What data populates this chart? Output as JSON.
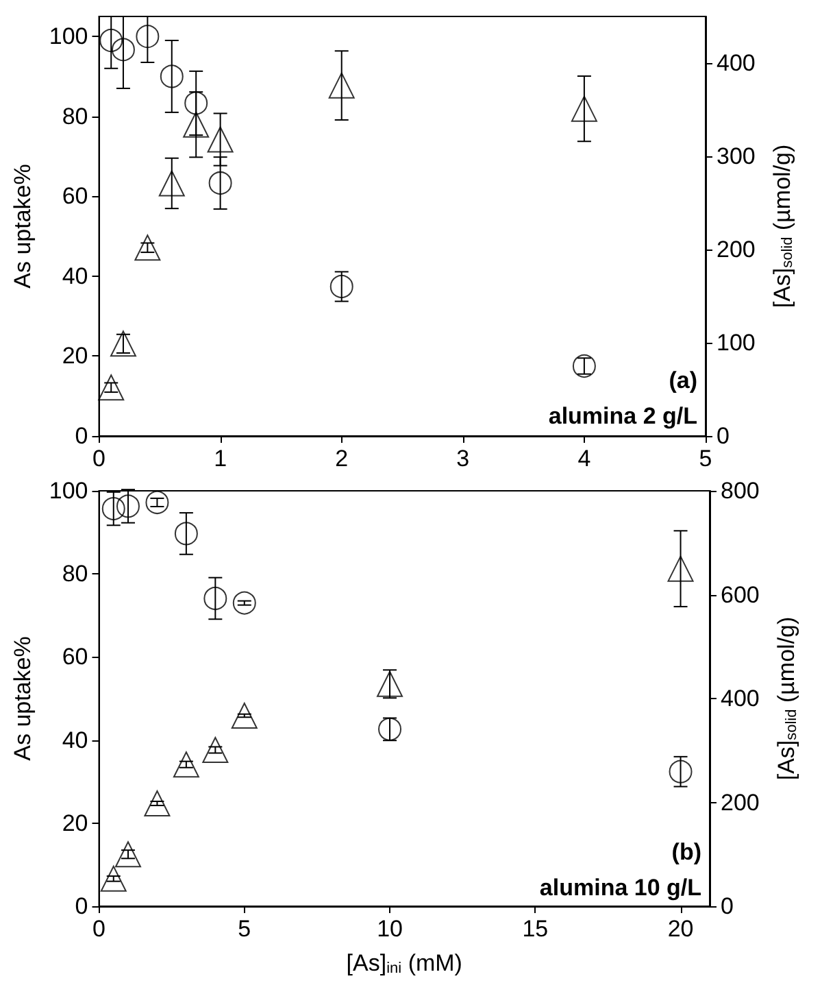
{
  "chart_data": [
    {
      "type": "scatter",
      "ylabel": "As uptake%",
      "y2label": "[As]$_{solid}$ (µmol/g)",
      "annotations": [
        "(a)",
        "alumina 2 g/L"
      ],
      "xlim": [
        0,
        5
      ],
      "xticks": [
        0,
        1,
        2,
        3,
        4,
        5
      ],
      "ylim": [
        0,
        105
      ],
      "yticks": [
        0,
        20,
        40,
        60,
        80,
        100
      ],
      "y2lim": [
        0,
        450
      ],
      "y2ticks": [
        0,
        100,
        200,
        300,
        400
      ],
      "grid": false,
      "series": [
        {
          "color": "#000000",
          "marker": "circle",
          "x": [
            0.1,
            0.2,
            0.4,
            0.6,
            0.8,
            1,
            2,
            4
          ],
          "values": [
            99,
            96.7,
            100,
            90,
            83.3,
            63.3,
            37.4,
            17.5
          ],
          "errors": [
            [
              92,
              105
            ],
            [
              87,
              105
            ],
            [
              93.5,
              105
            ],
            9,
            8,
            6.5,
            3.7,
            2
          ]
        },
        {
          "color": "#000000",
          "marker": "triangle",
          "axis": "y2",
          "x": [
            0.1,
            0.2,
            0.4,
            0.6,
            0.8,
            1,
            2,
            4
          ],
          "values": [
            52,
            99,
            202,
            271,
            334,
            318,
            376,
            351
          ],
          "errors": [
            5,
            10,
            5,
            27,
            35,
            28,
            37,
            35
          ]
        }
      ]
    },
    {
      "type": "scatter",
      "xlabel": "[As]$_{ini}$ (mM)",
      "ylabel": "As uptake%",
      "y2label": "[As]$_{solid}$ (µmol/g)",
      "annotations": [
        "(b)",
        "alumina 10 g/L"
      ],
      "xlim": [
        0,
        21
      ],
      "xticks": [
        0,
        5,
        10,
        15,
        20
      ],
      "ylim": [
        0,
        100
      ],
      "yticks": [
        0,
        20,
        40,
        60,
        80,
        100
      ],
      "y2lim": [
        0,
        800
      ],
      "y2ticks": [
        0,
        200,
        400,
        600,
        800
      ],
      "grid": false,
      "series": [
        {
          "color": "#000000",
          "marker": "circle",
          "x": [
            0.5,
            1,
            2,
            3,
            4,
            5,
            10,
            20
          ],
          "values": [
            95.7,
            96.3,
            97.2,
            89.7,
            74.1,
            73,
            42.6,
            32.4
          ],
          "errors": [
            4,
            4,
            1,
            5,
            5,
            0.5,
            2.7,
            3.6
          ]
        },
        {
          "color": "#000000",
          "marker": "triangle",
          "axis": "y2",
          "x": [
            0.5,
            1,
            2,
            3,
            4,
            5,
            10,
            20
          ],
          "values": [
            53,
            100,
            198,
            273,
            301,
            367,
            428,
            650
          ],
          "errors": [
            5,
            8,
            4,
            6,
            6,
            3,
            27,
            73
          ]
        }
      ]
    }
  ]
}
